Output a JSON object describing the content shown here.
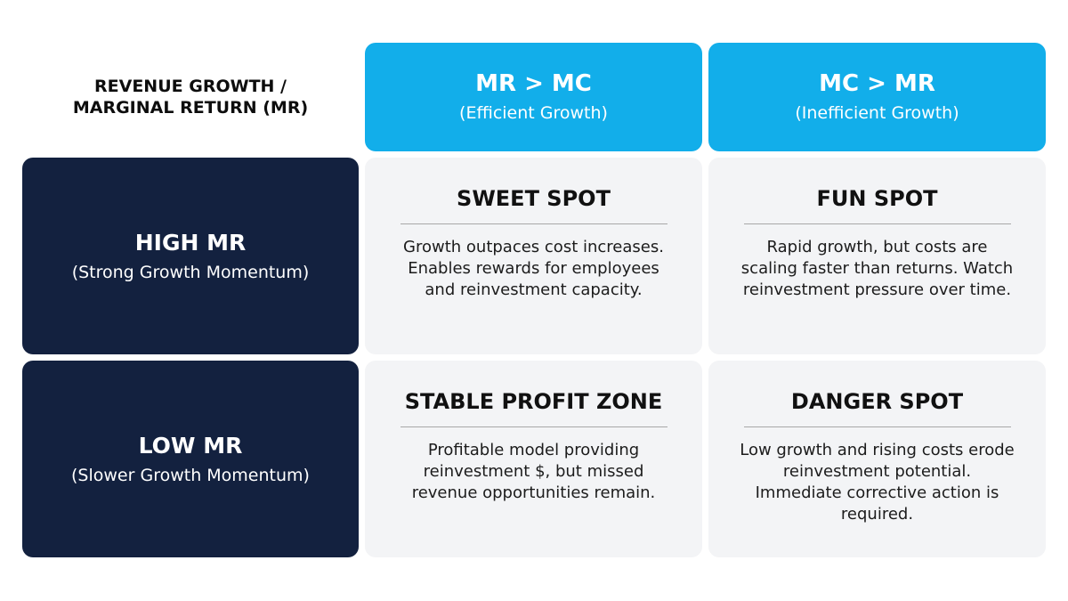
{
  "corner": {
    "line1": "REVENUE GROWTH /",
    "line2": "MARGINAL RETURN (MR)"
  },
  "columns": [
    {
      "title": "MR > MC",
      "subtitle": "(Efficient Growth)"
    },
    {
      "title": "MC > MR",
      "subtitle": "(Inefficient Growth)"
    }
  ],
  "rows": [
    {
      "title": "HIGH MR",
      "subtitle": "(Strong Growth Momentum)"
    },
    {
      "title": "LOW MR",
      "subtitle": "(Slower Growth Momentum)"
    }
  ],
  "cells": [
    [
      {
        "title": "SWEET SPOT",
        "text": "Growth outpaces cost increases. Enables rewards for employees and reinvestment capacity."
      },
      {
        "title": "FUN SPOT",
        "text": "Rapid growth, but costs are scaling faster than returns. Watch reinvestment pressure over time."
      }
    ],
    [
      {
        "title": "STABLE PROFIT ZONE",
        "text": "Profitable model providing reinvestment $, but missed revenue opportunities remain."
      },
      {
        "title": "DANGER SPOT",
        "text": "Low growth and rising costs erode reinvestment potential. Immediate corrective action is required."
      }
    ]
  ],
  "colors": {
    "column_header": "#12aeea",
    "row_header": "#13213f",
    "cell_background": "#f3f4f6"
  }
}
